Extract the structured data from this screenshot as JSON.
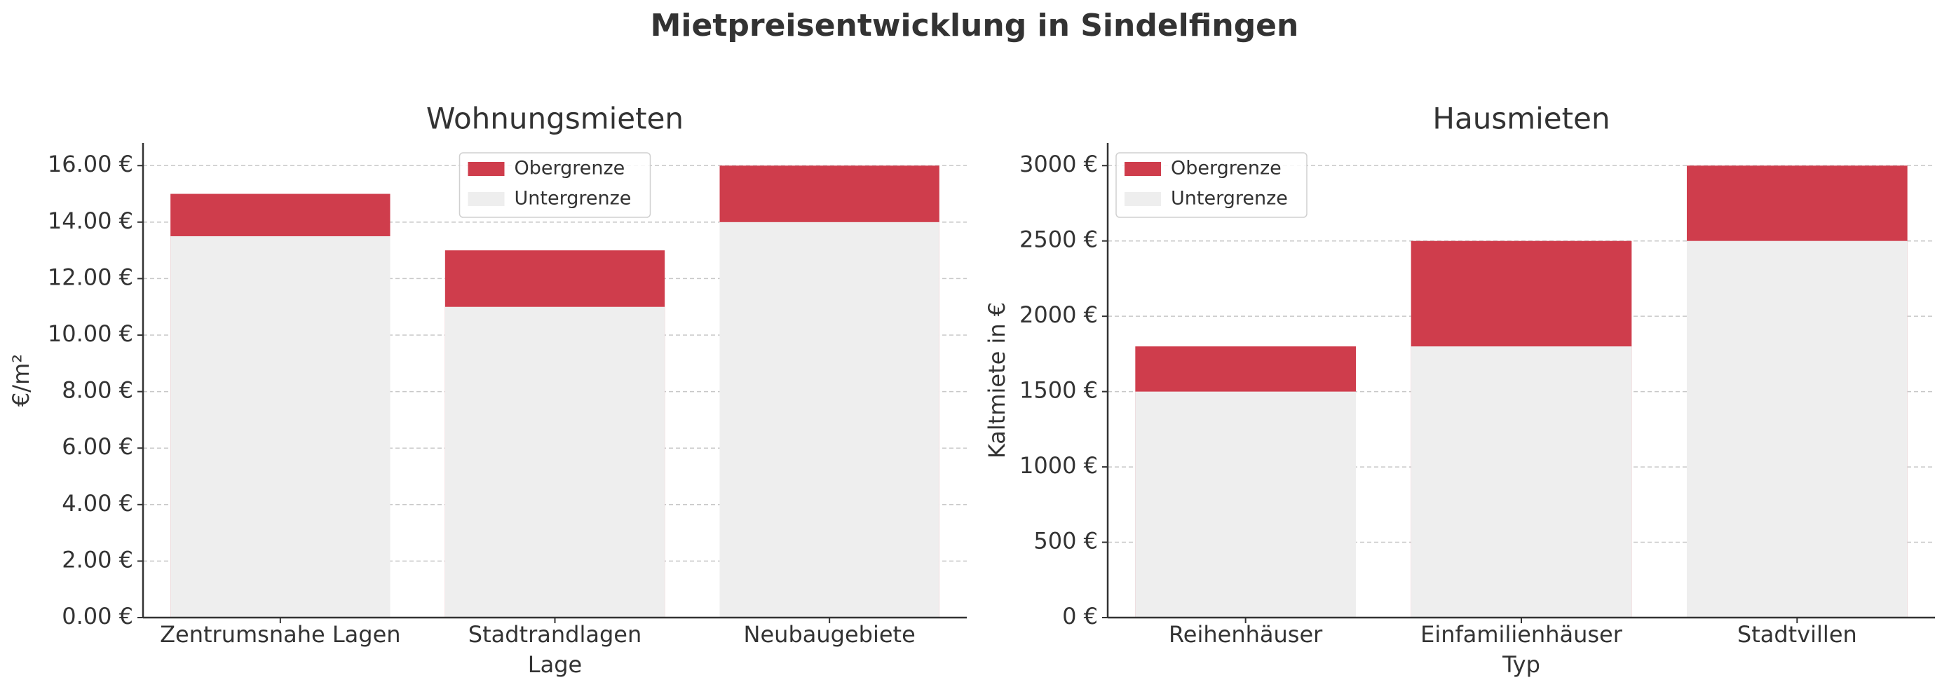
{
  "title": "Mietpreisentwicklung in Sindelfingen",
  "chart_data": [
    {
      "type": "bar",
      "title": "Wohnungsmieten",
      "xlabel": "Lage",
      "ylabel": "€/m²",
      "categories": [
        "Zentrumsnahe Lagen",
        "Stadtrandlagen",
        "Neubaugebiete"
      ],
      "series": [
        {
          "name": "Obergrenze",
          "color": "#cf3d4c",
          "values": [
            15,
            13,
            16
          ]
        },
        {
          "name": "Untergrenze",
          "color": "#eeeeee",
          "values": [
            13.5,
            11,
            14
          ]
        }
      ],
      "ylim": [
        0,
        16.8
      ],
      "yticks": [
        {
          "value": 0,
          "label": "0.00 €"
        },
        {
          "value": 2,
          "label": "2.00 €"
        },
        {
          "value": 4,
          "label": "4.00 €"
        },
        {
          "value": 6,
          "label": "6.00 €"
        },
        {
          "value": 8,
          "label": "8.00 €"
        },
        {
          "value": 10,
          "label": "10.00 €"
        },
        {
          "value": 12,
          "label": "12.00 €"
        },
        {
          "value": 14,
          "label": "14.00 €"
        },
        {
          "value": 16,
          "label": "16.00 €"
        }
      ],
      "grid": true,
      "legend": "upper center"
    },
    {
      "type": "bar",
      "title": "Hausmieten",
      "xlabel": "Typ",
      "ylabel": "Kaltmiete in €",
      "categories": [
        "Reihenhäuser",
        "Einfamilienhäuser",
        "Stadtvillen"
      ],
      "series": [
        {
          "name": "Obergrenze",
          "color": "#cf3d4c",
          "values": [
            1800,
            2500,
            3000
          ]
        },
        {
          "name": "Untergrenze",
          "color": "#eeeeee",
          "values": [
            1500,
            1800,
            2500
          ]
        }
      ],
      "ylim": [
        0,
        3150
      ],
      "yticks": [
        {
          "value": 0,
          "label": "0 €"
        },
        {
          "value": 500,
          "label": "500 €"
        },
        {
          "value": 1000,
          "label": "1000 €"
        },
        {
          "value": 1500,
          "label": "1500 €"
        },
        {
          "value": 2000,
          "label": "2000 €"
        },
        {
          "value": 2500,
          "label": "2500 €"
        },
        {
          "value": 3000,
          "label": "3000 €"
        }
      ],
      "grid": true,
      "legend": "upper left"
    }
  ]
}
